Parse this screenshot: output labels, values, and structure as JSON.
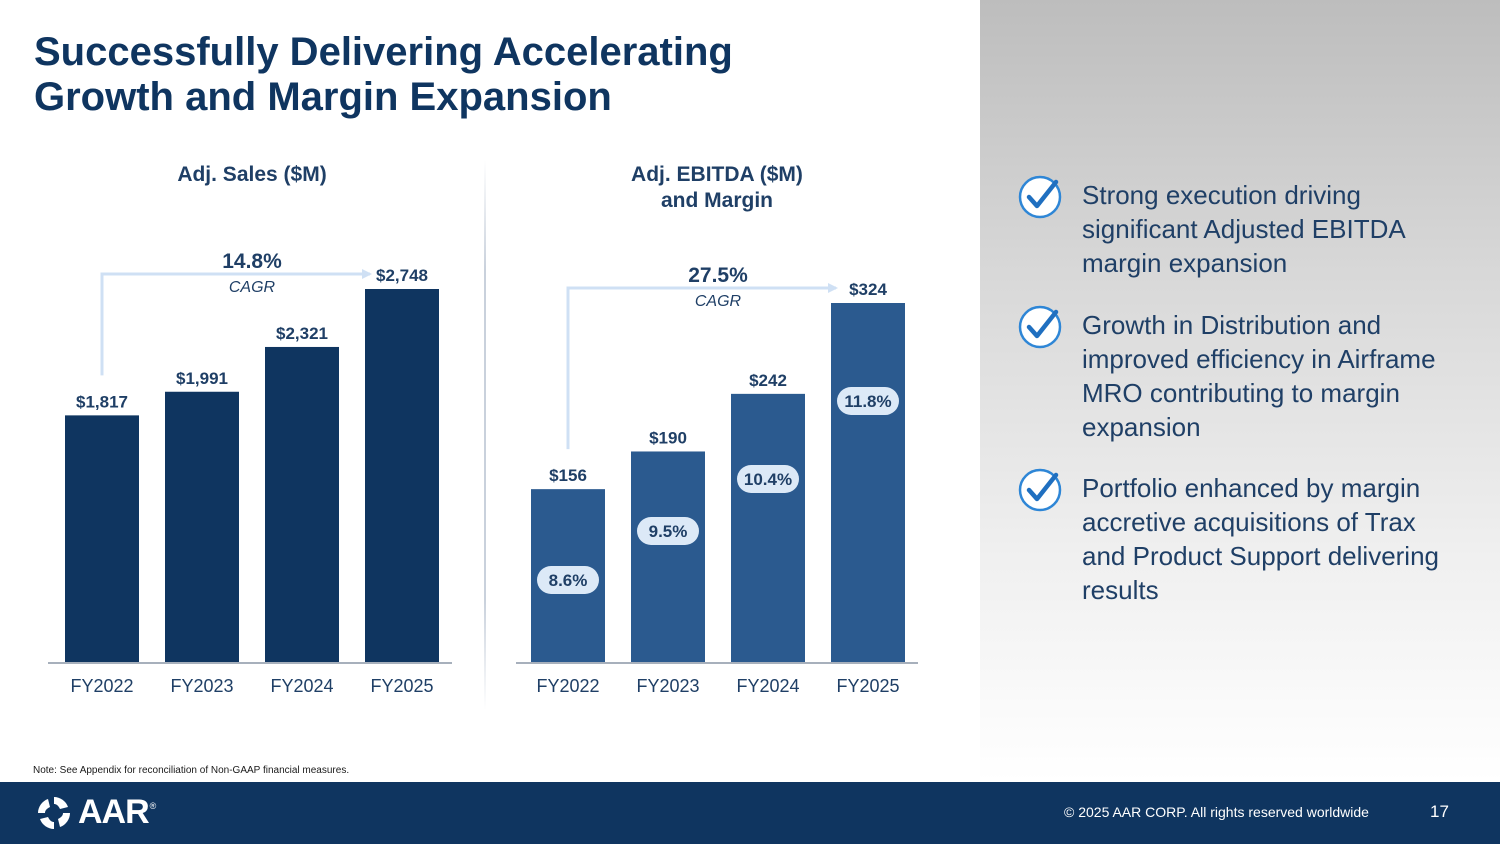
{
  "title": {
    "line1": "Successfully Delivering Accelerating",
    "line2": "Growth and Margin Expansion"
  },
  "chart_data": [
    {
      "type": "bar",
      "title": "Adj. Sales ($M)",
      "categories": [
        "FY2022",
        "FY2023",
        "FY2024",
        "FY2025"
      ],
      "values": [
        1817,
        1991,
        2321,
        2748
      ],
      "value_labels": [
        "$1,817",
        "$1,991",
        "$2,321",
        "$2,748"
      ],
      "ylim": [
        0,
        2748
      ],
      "bar_color": "#0f3560",
      "cagr_value": "14.8%",
      "cagr_label": "CAGR"
    },
    {
      "type": "bar",
      "title_line1": "Adj. EBITDA ($M)",
      "title_line2": "and Margin",
      "categories": [
        "FY2022",
        "FY2023",
        "FY2024",
        "FY2025"
      ],
      "values": [
        156,
        190,
        242,
        324
      ],
      "value_labels": [
        "$156",
        "$190",
        "$242",
        "$324"
      ],
      "margins": [
        "8.6%",
        "9.5%",
        "10.4%",
        "11.8%"
      ],
      "ylim": [
        0,
        324
      ],
      "bar_color": "#2b5a8f",
      "cagr_value": "27.5%",
      "cagr_label": "CAGR"
    }
  ],
  "bullets": [
    "Strong execution driving significant Adjusted EBITDA margin expansion",
    "Growth in Distribution and improved efficiency in Airframe MRO contributing to margin expansion",
    "Portfolio enhanced by margin accretive acquisitions of Trax and Product Support delivering results"
  ],
  "note": "Note: See Appendix for reconciliation of Non-GAAP financial measures.",
  "footer": {
    "logo_text": "AAR",
    "logo_reg": "®",
    "copyright": "© 2025 AAR CORP. All rights reserved worldwide",
    "page_number": "17"
  },
  "colors": {
    "title": "#0f3560",
    "footer": "#0f3560",
    "check": "#2e86d6",
    "arrow": "#cfe0f4"
  }
}
